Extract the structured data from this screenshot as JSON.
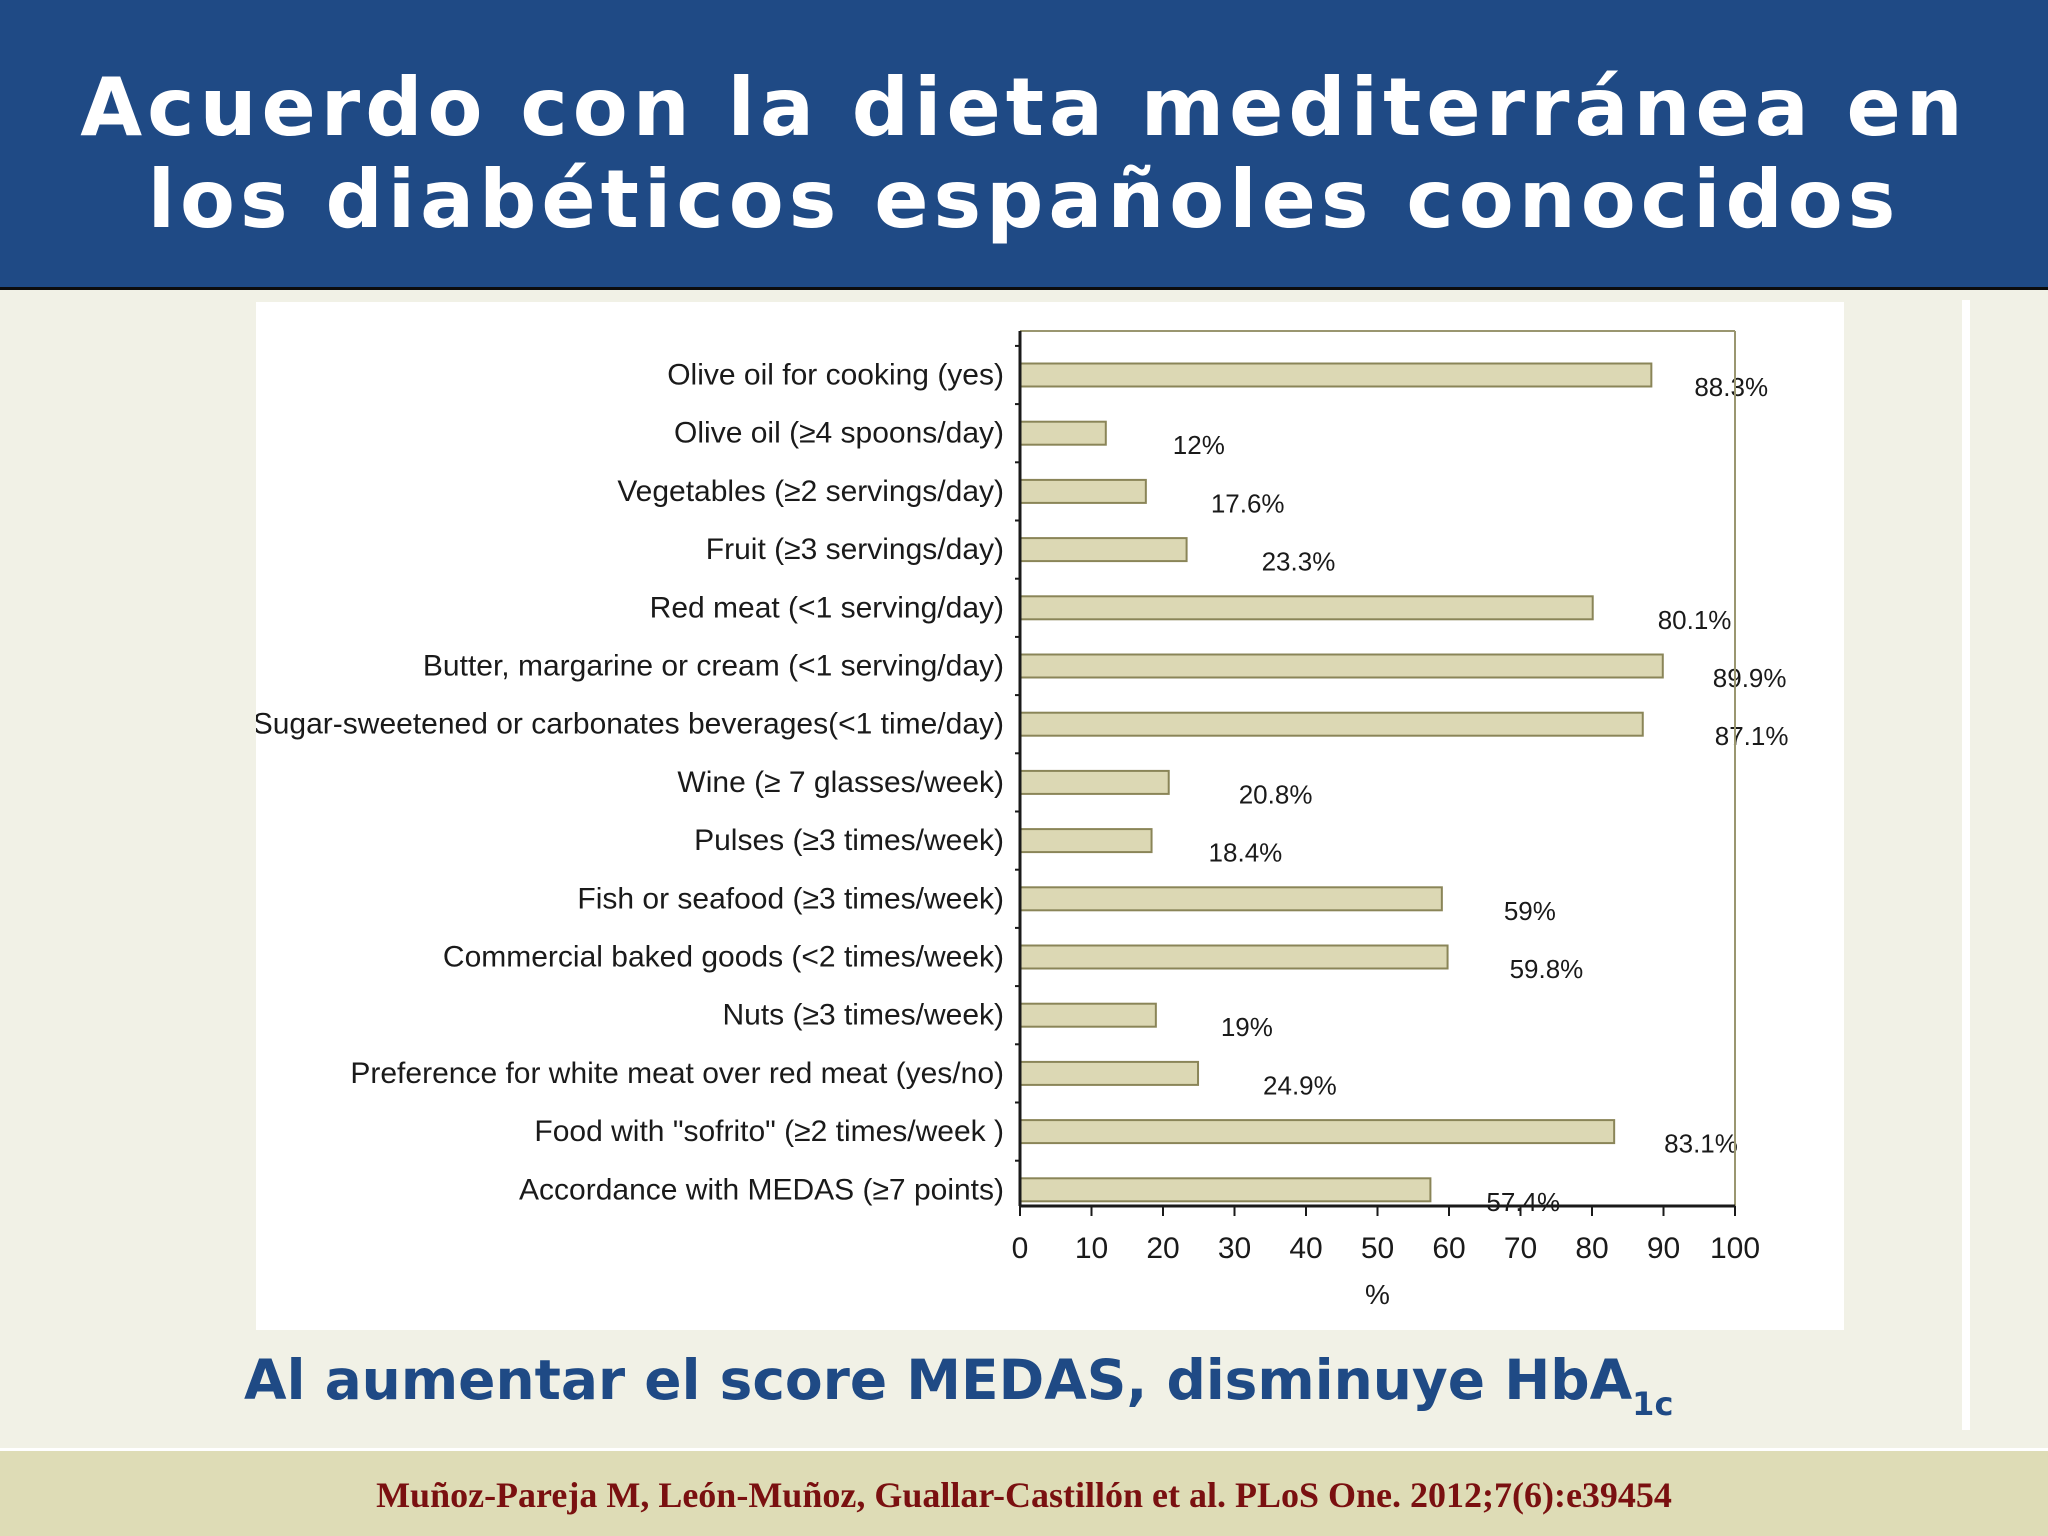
{
  "header": {
    "title_line1": "Acuerdo con la dieta mediterránea en",
    "title_line2": "los diabéticos españoles conocidos"
  },
  "subtitle": {
    "text": "Al aumentar el score MEDAS, disminuye HbA",
    "subscript": "1c"
  },
  "citation": "Muñoz-Pareja M, León-Muñoz, Guallar-Castillón et al. PLoS One. 2012;7(6):e39454",
  "colors": {
    "header_bg": "#1f4a85",
    "bar_fill": "#dcd8b4",
    "bar_stroke": "#8a8558",
    "frame_stroke": "#9a9670",
    "citation": "#7a1010",
    "subtitle": "#1f4a85",
    "footer_bg": "#dedcb6"
  },
  "chart_data": {
    "type": "bar",
    "orientation": "horizontal",
    "categories": [
      "Olive oil for cooking (yes)",
      "Olive oil (≥4 spoons/day)",
      "Vegetables (≥2 servings/day)",
      "Fruit (≥3 servings/day)",
      "Red meat (<1 serving/day)",
      "Butter, margarine or cream (<1 serving/day)",
      "Sugar-sweetened or carbonates beverages(<1 time/day)",
      "Wine (≥ 7 glasses/week)",
      "Pulses (≥3 times/week)",
      "Fish or seafood (≥3 times/week)",
      "Commercial baked goods (<2 times/week)",
      "Nuts (≥3 times/week)",
      "Preference for white meat over red meat (yes/no)",
      "Food with \"sofrito\" (≥2 times/week )",
      "Accordance with MEDAS (≥7 points)"
    ],
    "values": [
      88.3,
      12,
      17.6,
      23.3,
      80.1,
      89.9,
      87.1,
      20.8,
      18.4,
      59,
      59.8,
      19,
      24.9,
      83.1,
      57.4
    ],
    "value_labels": [
      "88.3%",
      "12%",
      "17.6%",
      "23.3%",
      "80.1%",
      "89.9%",
      "87.1%",
      "20.8%",
      "18.4%",
      "59%",
      "59.8%",
      "19%",
      "24.9%",
      "83.1%",
      "57.4%"
    ],
    "xlabel": "%",
    "xlim": [
      0,
      100
    ],
    "xticks": [
      0,
      10,
      20,
      30,
      40,
      50,
      60,
      70,
      80,
      90,
      100
    ],
    "grid": false,
    "legend": false
  }
}
